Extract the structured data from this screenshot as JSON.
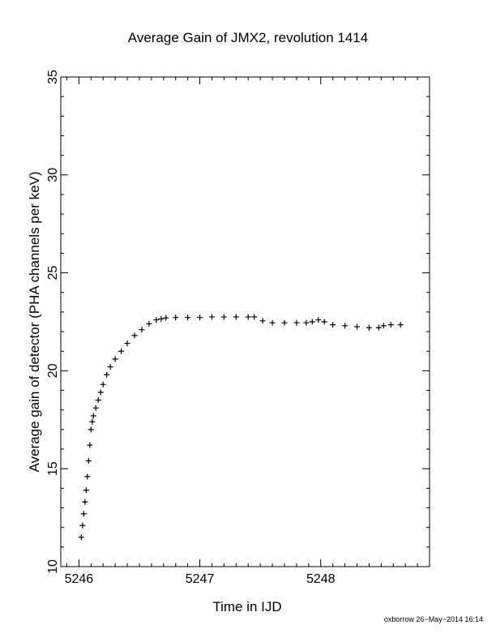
{
  "chart_data": {
    "type": "scatter",
    "title": "Average Gain of JMX2, revolution 1414",
    "xlabel": "Time in IJD",
    "ylabel": "Average gain of detector (PHA channels per keV)",
    "xlim": [
      5245.85,
      5248.9
    ],
    "ylim": [
      10,
      35
    ],
    "xticks": [
      5246,
      5247,
      5248
    ],
    "yticks": [
      10,
      15,
      20,
      25,
      30,
      35
    ],
    "grid": false,
    "marker": "plus",
    "color": "#000000",
    "series": [
      {
        "x": [
          5246.02,
          5246.03,
          5246.04,
          5246.05,
          5246.06,
          5246.07,
          5246.08,
          5246.09,
          5246.1,
          5246.11,
          5246.12,
          5246.14,
          5246.16,
          5246.18,
          5246.2,
          5246.23,
          5246.26,
          5246.3,
          5246.35,
          5246.4,
          5246.46,
          5246.52,
          5246.58,
          5246.64,
          5246.68,
          5246.72,
          5246.8,
          5246.9,
          5247.0,
          5247.1,
          5247.2,
          5247.3,
          5247.4,
          5247.45,
          5247.52,
          5247.6,
          5247.7,
          5247.8,
          5247.88,
          5247.93,
          5247.98,
          5248.03,
          5248.1,
          5248.2,
          5248.3,
          5248.4,
          5248.48,
          5248.52,
          5248.58,
          5248.66
        ],
        "y": [
          11.5,
          12.1,
          12.7,
          13.3,
          13.9,
          14.6,
          15.4,
          16.2,
          17.0,
          17.4,
          17.7,
          18.1,
          18.5,
          18.9,
          19.3,
          19.8,
          20.2,
          20.6,
          21.0,
          21.4,
          21.8,
          22.1,
          22.4,
          22.6,
          22.65,
          22.7,
          22.72,
          22.72,
          22.72,
          22.75,
          22.75,
          22.75,
          22.75,
          22.75,
          22.55,
          22.45,
          22.45,
          22.45,
          22.45,
          22.5,
          22.6,
          22.5,
          22.35,
          22.3,
          22.25,
          22.2,
          22.2,
          22.3,
          22.35,
          22.35
        ]
      }
    ]
  },
  "footer": {
    "credit": "oxborrow 26−May−2014 16:14"
  }
}
